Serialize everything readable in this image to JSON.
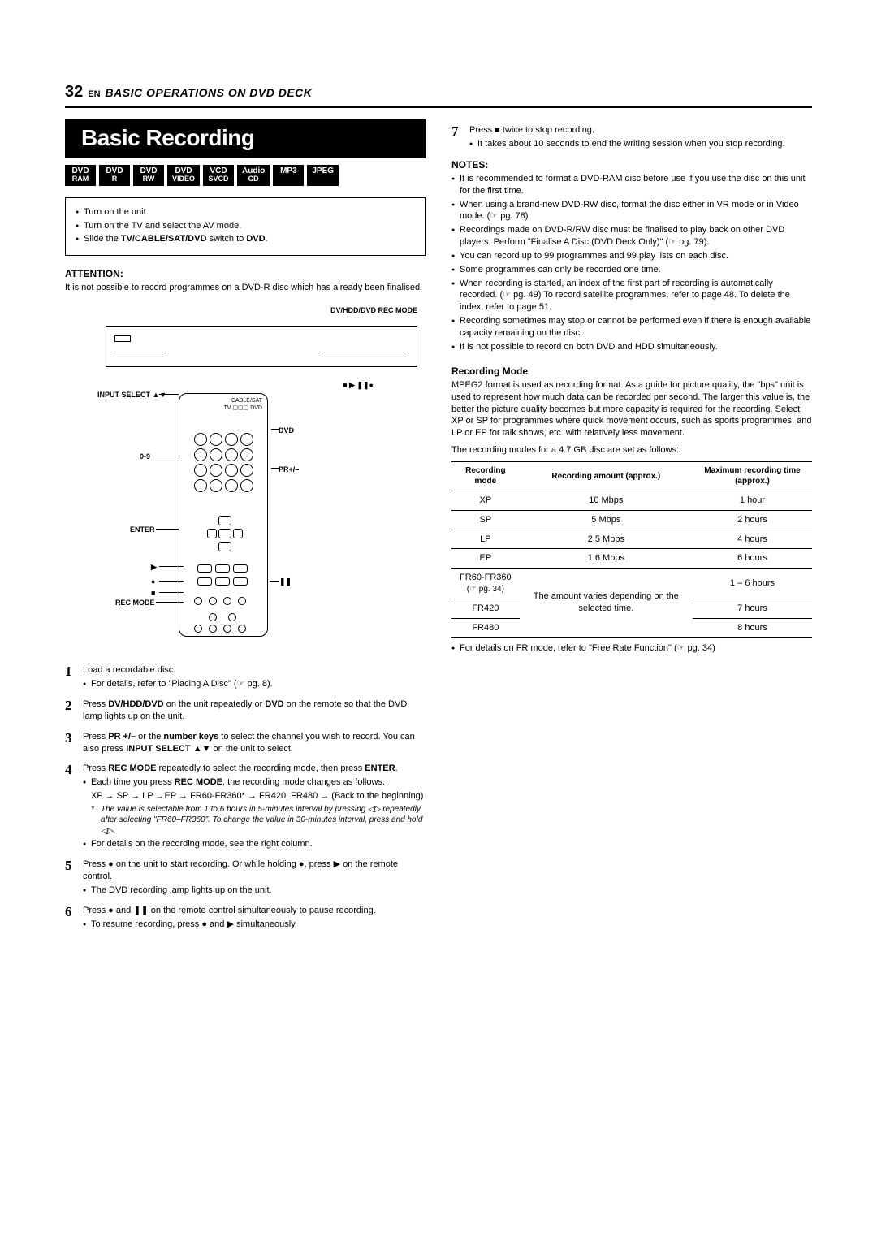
{
  "header": {
    "page_number": "32",
    "lang": "EN",
    "section": "BASIC OPERATIONS ON DVD DECK"
  },
  "title": "Basic Recording",
  "format_badges": [
    {
      "line1": "DVD",
      "line2": "RAM"
    },
    {
      "line1": "DVD",
      "line2": "R"
    },
    {
      "line1": "DVD",
      "line2": "RW"
    },
    {
      "line1": "DVD",
      "line2": "VIDEO"
    },
    {
      "line1": "VCD",
      "line2": "SVCD"
    },
    {
      "line1": "Audio",
      "line2": "CD"
    },
    {
      "line1": "MP3",
      "line2": ""
    },
    {
      "line1": "JPEG",
      "line2": ""
    }
  ],
  "setup_box": {
    "items": [
      "Turn on the unit.",
      "Turn on the TV and select the AV mode.",
      "Slide the TV/CABLE/SAT/DVD switch to DVD."
    ]
  },
  "attention": {
    "heading": "ATTENTION",
    "text": "It is not possible to record programmes on a DVD-R disc which has already been finalised."
  },
  "diagram_labels": {
    "top_right": "DV/HDD/DVD   REC MODE",
    "left_input": "INPUT SELECT ▲▼",
    "top_transport": "■    ▶    ❚❚●",
    "cable_sat": "CABLE/SAT",
    "tv_dvd": "TV ▢▢▢ DVD",
    "dvd": "DVD",
    "zero_nine": "0-9",
    "pr": "PR+/–",
    "enter": "ENTER",
    "play": "▶",
    "rec": "●",
    "stop": "■",
    "pause": "❚❚",
    "rec_mode": "REC MODE"
  },
  "steps": [
    {
      "main": "Load a recordable disc.",
      "subs": [
        "For details, refer to \"Placing A Disc\" (☞ pg. 8)."
      ]
    },
    {
      "main": "Press DV/HDD/DVD on the unit repeatedly or DVD on the remote so that the DVD lamp lights up on the unit."
    },
    {
      "main": "Press PR +/– or the number keys to select the channel you wish to record. You can also press INPUT SELECT ▲▼ on the unit to select."
    },
    {
      "main": "Press REC MODE repeatedly to select the recording mode, then press ENTER.",
      "subs": [
        "Each time you press REC MODE, the recording mode changes as follows:"
      ],
      "chain": "XP → SP → LP →EP → FR60-FR360* → FR420, FR480 → (Back to the beginning)",
      "footnote": "The value is selectable from 1 to 6 hours in 5-minutes interval by pressing ◁▷ repeatedly after selecting \"FR60–FR360\". To change the value in 30-minutes interval, press and hold ◁▷.",
      "subs2": [
        "For details on the recording mode, see the right column."
      ]
    },
    {
      "main": "Press ● on the unit to start recording. Or while holding ●, press ▶ on the remote control.",
      "subs": [
        "The DVD recording lamp lights up on the unit."
      ]
    },
    {
      "main": "Press ● and ❚❚ on the remote control simultaneously to pause recording.",
      "subs": [
        "To resume recording, press ● and ▶ simultaneously."
      ]
    },
    {
      "main": "Press ■ twice to stop recording.",
      "subs": [
        "It takes about 10 seconds to end the writing session when you stop recording."
      ]
    }
  ],
  "notes": {
    "heading": "NOTES",
    "items": [
      "It is recommended to format a DVD-RAM disc before use if you use the disc on this unit for the first time.",
      "When using a brand-new DVD-RW disc, format the disc either in VR mode or in Video mode. (☞ pg. 78)",
      "Recordings made on DVD-R/RW disc must be finalised to play back on other DVD players. Perform \"Finalise A Disc (DVD Deck Only)\" (☞ pg. 79).",
      "You can record up to 99 programmes and 99 play lists on each disc.",
      "Some programmes can only be recorded one time.",
      "When recording is started, an index of the first part of recording is automatically recorded. (☞ pg. 49) To record satellite programmes, refer to page 48. To delete the index, refer to page 51.",
      "Recording sometimes may stop or cannot be performed even if there is enough available capacity remaining on the disc.",
      "It is not possible to record on both DVD and HDD simultaneously."
    ]
  },
  "recording_mode": {
    "heading": "Recording Mode",
    "para1": "MPEG2 format is used as recording format. As a guide for picture quality, the \"bps\" unit is used to represent how much data can be recorded per second. The larger this value is, the better the picture quality becomes but more capacity is required for the recording. Select XP or SP for programmes where quick movement occurs, such as sports programmes, and LP or EP for talk shows, etc. with relatively less movement.",
    "para2": "The recording modes for a 4.7 GB disc are set as follows:",
    "table": {
      "headers": [
        "Recording mode",
        "Recording amount (approx.)",
        "Maximum recording time (approx.)"
      ],
      "rows": [
        {
          "mode": "XP",
          "amount": "10 Mbps",
          "time": "1 hour"
        },
        {
          "mode": "SP",
          "amount": "5 Mbps",
          "time": "2 hours"
        },
        {
          "mode": "LP",
          "amount": "2.5 Mbps",
          "time": "4 hours"
        },
        {
          "mode": "EP",
          "amount": "1.6 Mbps",
          "time": "6 hours"
        }
      ],
      "fr_group": {
        "mode1": "FR60-FR360",
        "mode1_ref": "(☞ pg. 34)",
        "mode2": "FR420",
        "mode3": "FR480",
        "amount": "The amount varies depending on the selected time.",
        "time1": "1 – 6 hours",
        "time2": "7 hours",
        "time3": "8 hours"
      }
    },
    "after": "For details on FR mode, refer to \"Free Rate Function\" (☞ pg. 34)"
  }
}
